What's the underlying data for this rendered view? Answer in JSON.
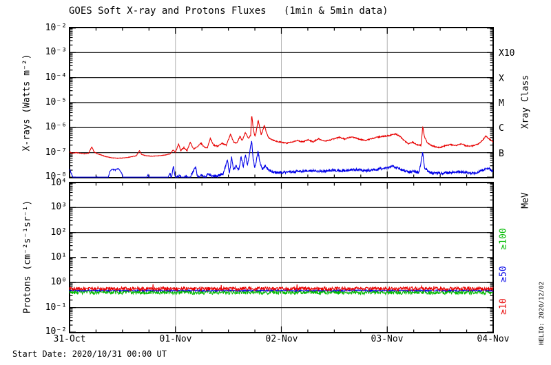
{
  "title": "GOES Soft X-ray and Protons Fluxes   (1min & 5min data)",
  "footer": {
    "start_date": "Start Date: 2020/10/31 00:00 UT",
    "credit": "HELIO: 2020/12/02"
  },
  "colors": {
    "xray_long": "#e80000",
    "xray_short": "#0000e8",
    "proton_ge10": "#e80000",
    "proton_ge50": "#0000e8",
    "proton_ge100": "#00bb00",
    "day_gridline": "#b4b4b4",
    "axis": "#000000"
  },
  "chart_data": [
    {
      "type": "line",
      "panel": "xray",
      "ylabel": "X-rays (Watts m⁻²)",
      "ylabel_right": "Xray Class",
      "ylim": [
        1e-08,
        0.01
      ],
      "ytick_labels": [
        "10⁻²",
        "10⁻³",
        "10⁻⁴",
        "10⁻⁵",
        "10⁻⁶",
        "10⁻⁷",
        "10⁻⁸"
      ],
      "ytick_exponents": [
        -2,
        -3,
        -4,
        -5,
        -6,
        -7,
        -8
      ],
      "solid_h_gridline_exponents": [
        -3,
        -4,
        -5,
        -6,
        -7
      ],
      "v_gridline_days": [
        1,
        2,
        3
      ],
      "class_labels": [
        {
          "text": "X10",
          "exponent": -3
        },
        {
          "text": "X",
          "exponent": -4
        },
        {
          "text": "M",
          "exponent": -5
        },
        {
          "text": "C",
          "exponent": -6
        },
        {
          "text": "B",
          "exponent": -7
        }
      ],
      "x_range_days": [
        0,
        4
      ],
      "xtick_labels": [
        "31-Oct",
        "01-Nov",
        "02-Nov",
        "03-Nov",
        "04-Nov"
      ],
      "xtick_days": [
        0,
        1,
        2,
        3,
        4
      ],
      "x_minor_step_days": 0.25,
      "series": [
        {
          "name": "xray-long-red",
          "color_key": "xray_long",
          "noise_dec": 0.022,
          "floor": 5.5e-08,
          "points": [
            [
              0.0,
              1.05e-07
            ],
            [
              0.03,
              9.5e-08
            ],
            [
              0.06,
              1e-07
            ],
            [
              0.1,
              9.5e-08
            ],
            [
              0.14,
              9e-08
            ],
            [
              0.18,
              9.5e-08
            ],
            [
              0.21,
              1.7e-07
            ],
            [
              0.23,
              1.1e-07
            ],
            [
              0.26,
              9e-08
            ],
            [
              0.3,
              8e-08
            ],
            [
              0.34,
              7e-08
            ],
            [
              0.4,
              6.2e-08
            ],
            [
              0.46,
              6e-08
            ],
            [
              0.52,
              6.2e-08
            ],
            [
              0.58,
              6.8e-08
            ],
            [
              0.63,
              7.5e-08
            ],
            [
              0.66,
              1.2e-07
            ],
            [
              0.68,
              8.5e-08
            ],
            [
              0.72,
              7.5e-08
            ],
            [
              0.78,
              7.2e-08
            ],
            [
              0.84,
              7.5e-08
            ],
            [
              0.9,
              8e-08
            ],
            [
              0.95,
              9e-08
            ],
            [
              0.98,
              1.3e-07
            ],
            [
              1.0,
              1e-07
            ],
            [
              1.03,
              2.3e-07
            ],
            [
              1.05,
              1.2e-07
            ],
            [
              1.08,
              1.6e-07
            ],
            [
              1.11,
              1.2e-07
            ],
            [
              1.14,
              2.6e-07
            ],
            [
              1.17,
              1.4e-07
            ],
            [
              1.2,
              1.6e-07
            ],
            [
              1.24,
              2.4e-07
            ],
            [
              1.27,
              1.7e-07
            ],
            [
              1.3,
              1.5e-07
            ],
            [
              1.33,
              3.8e-07
            ],
            [
              1.36,
              2e-07
            ],
            [
              1.4,
              1.8e-07
            ],
            [
              1.44,
              2.4e-07
            ],
            [
              1.48,
              2e-07
            ],
            [
              1.52,
              5.5e-07
            ],
            [
              1.55,
              2.6e-07
            ],
            [
              1.58,
              2.4e-07
            ],
            [
              1.61,
              4.5e-07
            ],
            [
              1.63,
              3e-07
            ],
            [
              1.66,
              6.5e-07
            ],
            [
              1.69,
              3.8e-07
            ],
            [
              1.71,
              5e-07
            ],
            [
              1.72,
              3.4e-06
            ],
            [
              1.735,
              9e-07
            ],
            [
              1.75,
              4.5e-07
            ],
            [
              1.76,
              6e-07
            ],
            [
              1.78,
              2e-06
            ],
            [
              1.795,
              1.1e-06
            ],
            [
              1.81,
              5e-07
            ],
            [
              1.84,
              1.3e-06
            ],
            [
              1.86,
              6e-07
            ],
            [
              1.88,
              4e-07
            ],
            [
              1.92,
              3.2e-07
            ],
            [
              1.96,
              2.8e-07
            ],
            [
              2.0,
              2.6e-07
            ],
            [
              2.05,
              2.4e-07
            ],
            [
              2.1,
              2.7e-07
            ],
            [
              2.15,
              3.1e-07
            ],
            [
              2.2,
              2.7e-07
            ],
            [
              2.25,
              3.3e-07
            ],
            [
              2.3,
              2.7e-07
            ],
            [
              2.35,
              3.6e-07
            ],
            [
              2.4,
              2.9e-07
            ],
            [
              2.45,
              3.1e-07
            ],
            [
              2.5,
              3.6e-07
            ],
            [
              2.55,
              4.1e-07
            ],
            [
              2.6,
              3.5e-07
            ],
            [
              2.65,
              4.2e-07
            ],
            [
              2.7,
              3.9e-07
            ],
            [
              2.75,
              3.3e-07
            ],
            [
              2.8,
              3.1e-07
            ],
            [
              2.85,
              3.6e-07
            ],
            [
              2.9,
              4.1e-07
            ],
            [
              2.95,
              4.4e-07
            ],
            [
              3.0,
              4.7e-07
            ],
            [
              3.05,
              5.2e-07
            ],
            [
              3.08,
              5.6e-07
            ],
            [
              3.12,
              4.5e-07
            ],
            [
              3.16,
              3e-07
            ],
            [
              3.2,
              2.3e-07
            ],
            [
              3.24,
              2.6e-07
            ],
            [
              3.28,
              2.1e-07
            ],
            [
              3.32,
              2e-07
            ],
            [
              3.335,
              1.15e-06
            ],
            [
              3.35,
              4.5e-07
            ],
            [
              3.38,
              2.4e-07
            ],
            [
              3.42,
              1.9e-07
            ],
            [
              3.46,
              1.7e-07
            ],
            [
              3.5,
              1.6e-07
            ],
            [
              3.55,
              1.9e-07
            ],
            [
              3.6,
              2.1e-07
            ],
            [
              3.65,
              1.9e-07
            ],
            [
              3.7,
              2.3e-07
            ],
            [
              3.74,
              1.9e-07
            ],
            [
              3.78,
              1.8e-07
            ],
            [
              3.82,
              1.9e-07
            ],
            [
              3.86,
              2.2e-07
            ],
            [
              3.9,
              3.1e-07
            ],
            [
              3.93,
              4.6e-07
            ],
            [
              3.96,
              3.6e-07
            ],
            [
              4.0,
              2.7e-07
            ]
          ]
        },
        {
          "name": "xray-short-blue",
          "color_key": "xray_short",
          "noise_dec": 0.05,
          "floor": 1.05e-08,
          "points": [
            [
              0.0,
              2.2e-08
            ],
            [
              0.02,
              1.4e-08
            ],
            [
              0.04,
              8e-09
            ],
            [
              0.1,
              7e-09
            ],
            [
              0.2,
              7e-09
            ],
            [
              0.26,
              1.1e-08
            ],
            [
              0.28,
              7e-09
            ],
            [
              0.36,
              8e-09
            ],
            [
              0.38,
              1.8e-08
            ],
            [
              0.4,
              2.2e-08
            ],
            [
              0.43,
              2e-08
            ],
            [
              0.46,
              2.3e-08
            ],
            [
              0.49,
              1.6e-08
            ],
            [
              0.51,
              8e-09
            ],
            [
              0.6,
              7e-09
            ],
            [
              0.72,
              8e-09
            ],
            [
              0.74,
              1.3e-08
            ],
            [
              0.76,
              7e-09
            ],
            [
              0.88,
              7e-09
            ],
            [
              0.93,
              1e-08
            ],
            [
              0.95,
              1.6e-08
            ],
            [
              0.96,
              8e-09
            ],
            [
              0.98,
              2.9e-08
            ],
            [
              1.0,
              9e-09
            ],
            [
              1.04,
              1.3e-08
            ],
            [
              1.07,
              8e-09
            ],
            [
              1.1,
              1.2e-08
            ],
            [
              1.13,
              9e-09
            ],
            [
              1.19,
              2.7e-08
            ],
            [
              1.21,
              1e-08
            ],
            [
              1.25,
              1.3e-08
            ],
            [
              1.28,
              1e-08
            ],
            [
              1.31,
              1.4e-08
            ],
            [
              1.35,
              1.1e-08
            ],
            [
              1.4,
              1.2e-08
            ],
            [
              1.45,
              1.4e-08
            ],
            [
              1.49,
              5e-08
            ],
            [
              1.51,
              1.5e-08
            ],
            [
              1.53,
              6.5e-08
            ],
            [
              1.55,
              2e-08
            ],
            [
              1.57,
              3e-08
            ],
            [
              1.6,
              2e-08
            ],
            [
              1.62,
              7.5e-08
            ],
            [
              1.64,
              2.5e-08
            ],
            [
              1.66,
              8.5e-08
            ],
            [
              1.68,
              3e-08
            ],
            [
              1.72,
              3.1e-07
            ],
            [
              1.735,
              5e-08
            ],
            [
              1.75,
              2.5e-08
            ],
            [
              1.78,
              1.05e-07
            ],
            [
              1.8,
              4e-08
            ],
            [
              1.82,
              2.2e-08
            ],
            [
              1.85,
              3e-08
            ],
            [
              1.88,
              2e-08
            ],
            [
              1.92,
              1.7e-08
            ],
            [
              1.96,
              1.6e-08
            ],
            [
              2.0,
              1.6e-08
            ],
            [
              2.1,
              1.7e-08
            ],
            [
              2.2,
              1.8e-08
            ],
            [
              2.3,
              1.9e-08
            ],
            [
              2.4,
              1.8e-08
            ],
            [
              2.5,
              2e-08
            ],
            [
              2.6,
              1.9e-08
            ],
            [
              2.7,
              2.1e-08
            ],
            [
              2.8,
              1.9e-08
            ],
            [
              2.9,
              2.2e-08
            ],
            [
              3.0,
              2.4e-08
            ],
            [
              3.05,
              2.8e-08
            ],
            [
              3.1,
              2.4e-08
            ],
            [
              3.15,
              2e-08
            ],
            [
              3.2,
              1.7e-08
            ],
            [
              3.25,
              1.8e-08
            ],
            [
              3.3,
              1.6e-08
            ],
            [
              3.335,
              1.05e-07
            ],
            [
              3.35,
              2.5e-08
            ],
            [
              3.4,
              1.6e-08
            ],
            [
              3.5,
              1.5e-08
            ],
            [
              3.6,
              1.6e-08
            ],
            [
              3.7,
              1.7e-08
            ],
            [
              3.8,
              1.5e-08
            ],
            [
              3.85,
              1.6e-08
            ],
            [
              3.9,
              2e-08
            ],
            [
              3.95,
              2.4e-08
            ],
            [
              4.0,
              1.8e-08
            ]
          ]
        }
      ]
    },
    {
      "type": "line",
      "panel": "protons",
      "ylabel": "Protons (cm⁻²s⁻¹sr⁻¹)",
      "ylabel_right": "MeV",
      "ylim": [
        0.01,
        10000.0
      ],
      "ytick_labels": [
        "10⁴",
        "10³",
        "10²",
        "10¹",
        "10⁰",
        "10⁻¹",
        "10⁻²"
      ],
      "ytick_exponents": [
        4,
        3,
        2,
        1,
        0,
        -1,
        -2
      ],
      "solid_h_gridline_exponents": [
        3,
        2,
        0,
        -1
      ],
      "dashed_h_gridline_exponents": [
        1
      ],
      "event_threshold_value": 10,
      "v_gridline_days": [
        1,
        2,
        3
      ],
      "x_range_days": [
        0,
        4
      ],
      "xtick_labels": [
        "31-Oct",
        "01-Nov",
        "02-Nov",
        "03-Nov",
        "04-Nov"
      ],
      "xtick_days": [
        0,
        1,
        2,
        3,
        4
      ],
      "x_minor_step_days": 0.25,
      "legend_labels": [
        {
          "text": "≥100",
          "color_key": "proton_ge100"
        },
        {
          "text": "≥50",
          "color_key": "proton_ge50"
        },
        {
          "text": "≥10",
          "color_key": "proton_ge10"
        }
      ],
      "series": [
        {
          "name": "protons-ge100-green",
          "color_key": "proton_ge100",
          "level": 0.42,
          "jitter_dec": 0.16,
          "bias": 0.6,
          "spike_prob": 0.0,
          "spike_dec": 0.0
        },
        {
          "name": "protons-ge50-blue",
          "color_key": "proton_ge50",
          "level": 0.48,
          "jitter_dec": 0.06,
          "bias": 0.5,
          "spike_prob": 0.0,
          "spike_dec": 0.0
        },
        {
          "name": "protons-ge10-red",
          "color_key": "proton_ge10",
          "level": 0.55,
          "jitter_dec": 0.14,
          "bias": 0.4,
          "spike_prob": 0.012,
          "spike_dec": 0.12
        }
      ]
    }
  ]
}
